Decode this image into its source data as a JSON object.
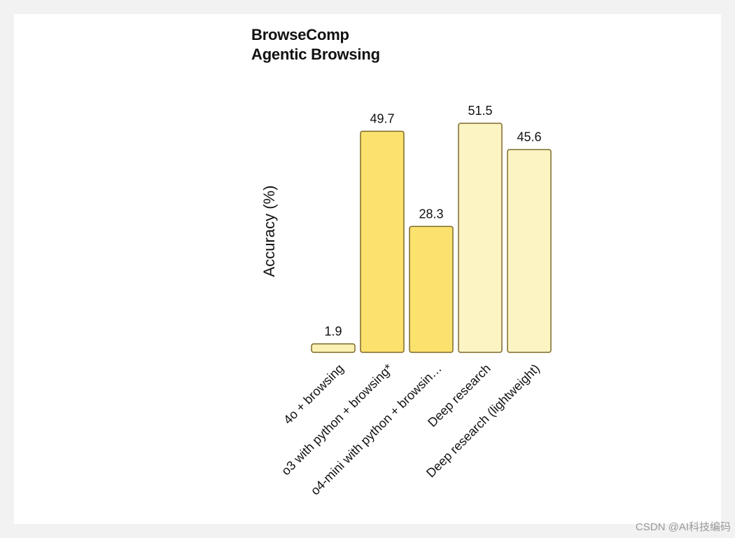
{
  "chart_data": {
    "type": "bar",
    "title": "BrowseComp",
    "subtitle": "Agentic Browsing",
    "ylabel": "Accuracy (%)",
    "xlabel": "",
    "ylim": [
      0,
      51.5
    ],
    "grid": false,
    "categories": [
      "4o + browsing",
      "o3 with python + browsing*",
      "o4-mini with python + browsin…",
      "Deep research",
      "Deep research (lightweight)"
    ],
    "values": [
      1.9,
      49.7,
      28.3,
      51.5,
      45.6
    ],
    "value_labels": [
      "1.9",
      "49.7",
      "28.3",
      "51.5",
      "45.6"
    ],
    "colors": [
      "#fbf0b4",
      "#fbe16e",
      "#fbe16e",
      "#fdf4c4",
      "#fdf4c4"
    ],
    "bar_outline": "#7d6a28"
  },
  "watermark": "CSDN @AI科技编码"
}
